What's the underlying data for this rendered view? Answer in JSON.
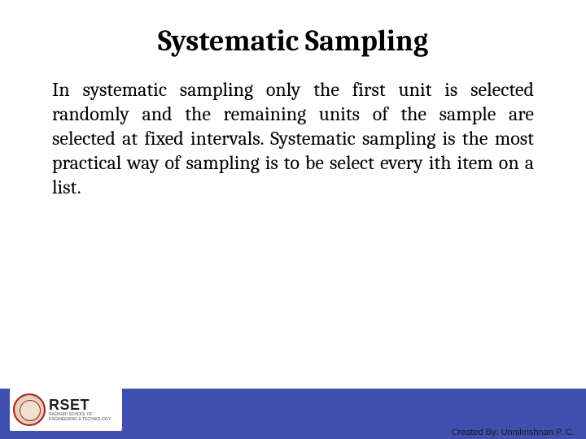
{
  "slide": {
    "title": "Systematic Sampling",
    "body": "In systematic sampling only the first unit is selected randomly and the remaining units of the sample are selected at fixed intervals. Systematic sampling is the most practical way of sampling is to be select every ith item on a list."
  },
  "footer": {
    "bar_color": "#4050b0",
    "logo_main": "RSET",
    "logo_sub1": "RAJAGIRI SCHOOL OF",
    "logo_sub2": "ENGINEERING & TECHNOLOGY",
    "credit": "Created By: Unnikrishnan P. C."
  },
  "colors": {
    "background": "#ffffff",
    "text": "#000000",
    "seal_border": "#a02020"
  },
  "typography": {
    "title_fontsize": 36,
    "body_fontsize": 24,
    "font_family": "Cambria, Georgia, serif"
  }
}
